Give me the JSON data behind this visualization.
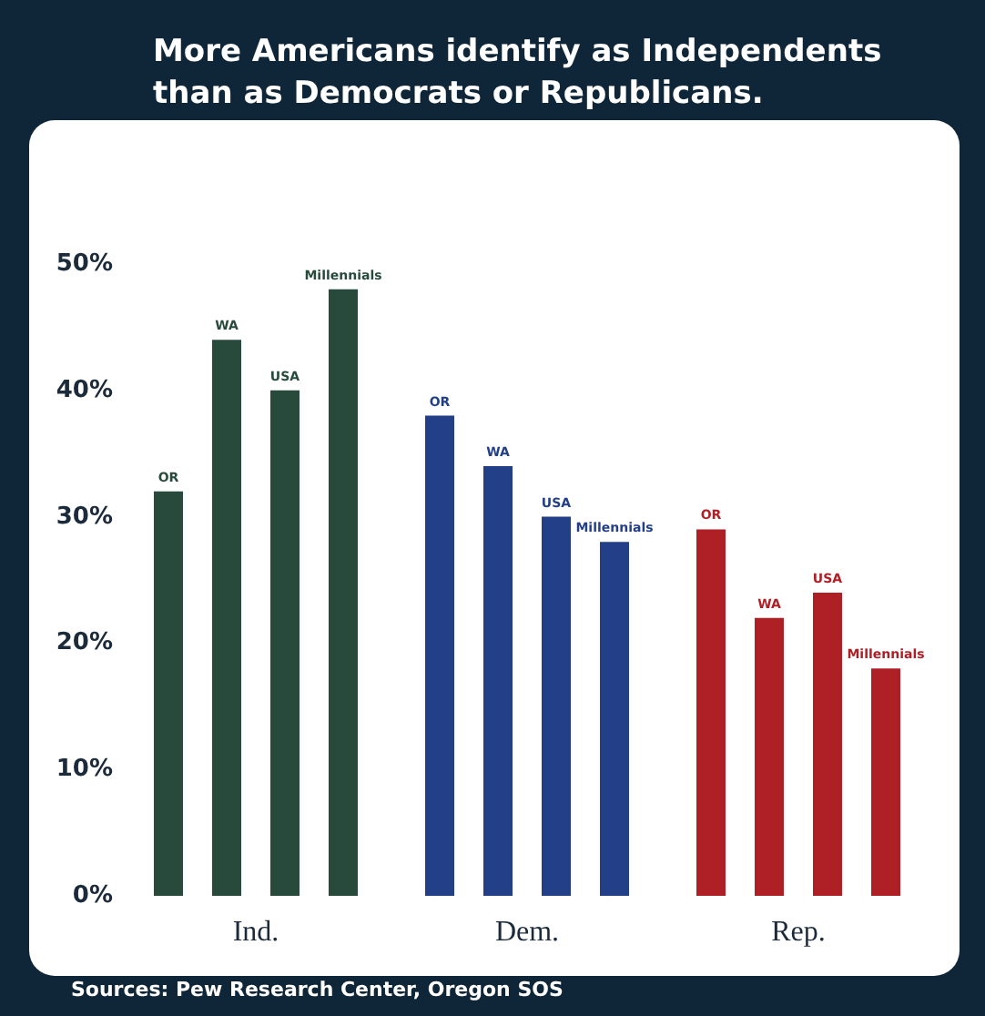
{
  "chart_data": {
    "type": "bar",
    "title": "More Americans identify as Independents than as Democrats or Republicans.",
    "categories": [
      "Ind.",
      "Dem.",
      "Rep."
    ],
    "series": [
      {
        "name": "OR",
        "colors": [
          "#274a3c",
          "#223f88",
          "#ae1f26"
        ],
        "values": [
          32,
          38,
          29
        ]
      },
      {
        "name": "WA",
        "colors": [
          "#274a3c",
          "#223f88",
          "#ae1f26"
        ],
        "values": [
          44,
          34,
          22
        ]
      },
      {
        "name": "USA",
        "colors": [
          "#274a3c",
          "#223f88",
          "#ae1f26"
        ],
        "values": [
          40,
          30,
          24
        ]
      },
      {
        "name": "Millennials",
        "colors": [
          "#274a3c",
          "#223f88",
          "#ae1f26"
        ],
        "values": [
          48,
          28,
          18
        ]
      }
    ],
    "ylim": [
      0,
      50
    ],
    "yticks": [
      {
        "value": 0,
        "label": "0%"
      },
      {
        "value": 10,
        "label": "10%"
      },
      {
        "value": 20,
        "label": "20%"
      },
      {
        "value": 30,
        "label": "30%"
      },
      {
        "value": 40,
        "label": "40%"
      },
      {
        "value": 50,
        "label": "50%"
      }
    ],
    "grid": false,
    "legend": false,
    "annotations": [
      "Sources: Pew Research Center, Oregon SOS"
    ]
  }
}
